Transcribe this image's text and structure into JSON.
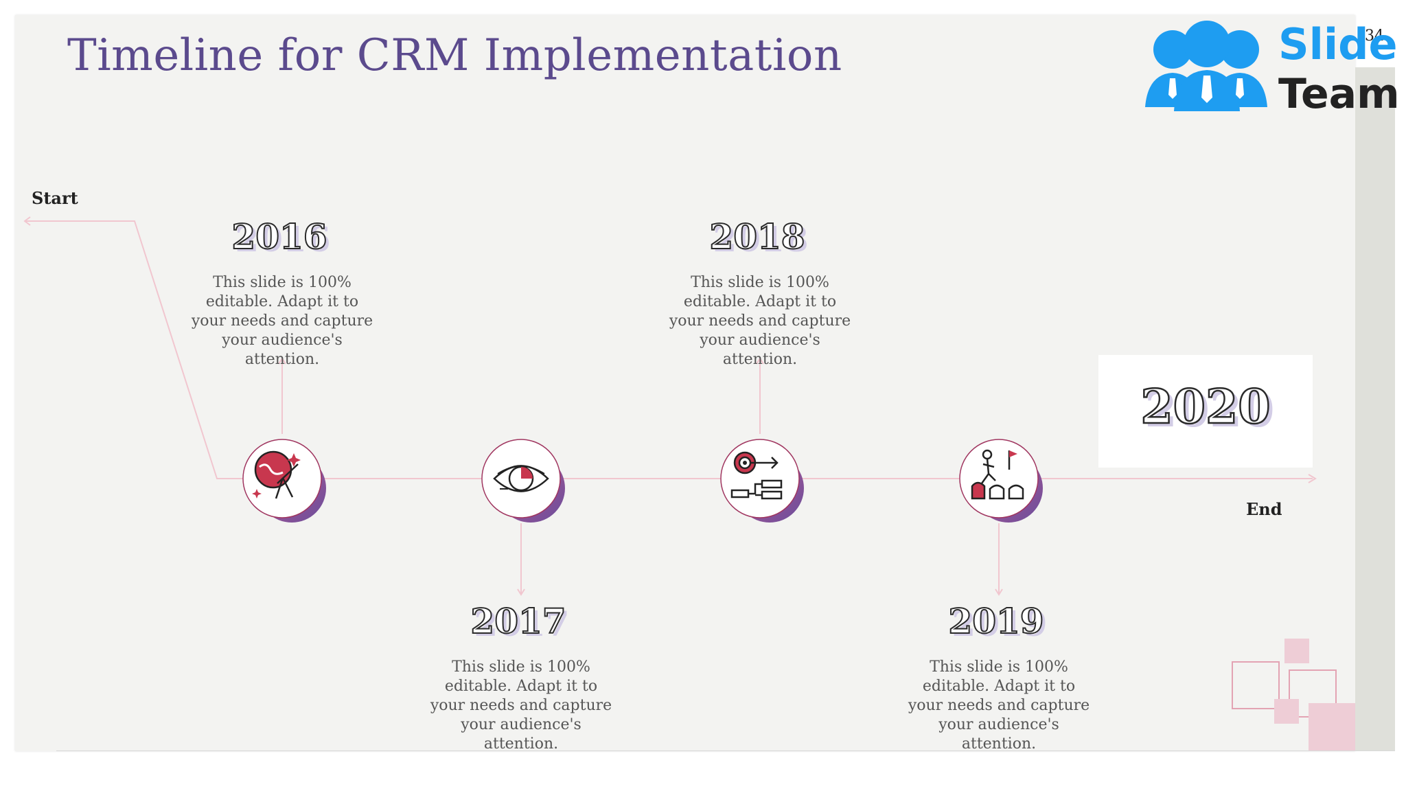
{
  "slide": {
    "title": "Timeline for CRM Implementation",
    "number": "34"
  },
  "logo": {
    "line1": "Slide",
    "line2": "Team",
    "color": "#1e9df1"
  },
  "timeline": {
    "start_label": "Start",
    "end_label": "End",
    "line_color": "#f1c6cf",
    "accent_color": "#8a4f9e",
    "milestones": [
      {
        "year": "2016",
        "text": "This slide is 100% editable. Adapt it to your needs and capture your audience's attention.",
        "icon": "globe-telescope-icon"
      },
      {
        "year": "2017",
        "text": "This slide is 100% editable. Adapt it to your needs and capture your audience's attention.",
        "icon": "eye-vision-icon"
      },
      {
        "year": "2018",
        "text": "This slide is 100% editable. Adapt it to your needs and capture your audience's attention.",
        "icon": "target-strategy-icon"
      },
      {
        "year": "2019",
        "text": "This slide is 100% editable. Adapt it to your needs and capture your audience's attention.",
        "icon": "team-goal-icon"
      }
    ],
    "final_year": "2020"
  }
}
